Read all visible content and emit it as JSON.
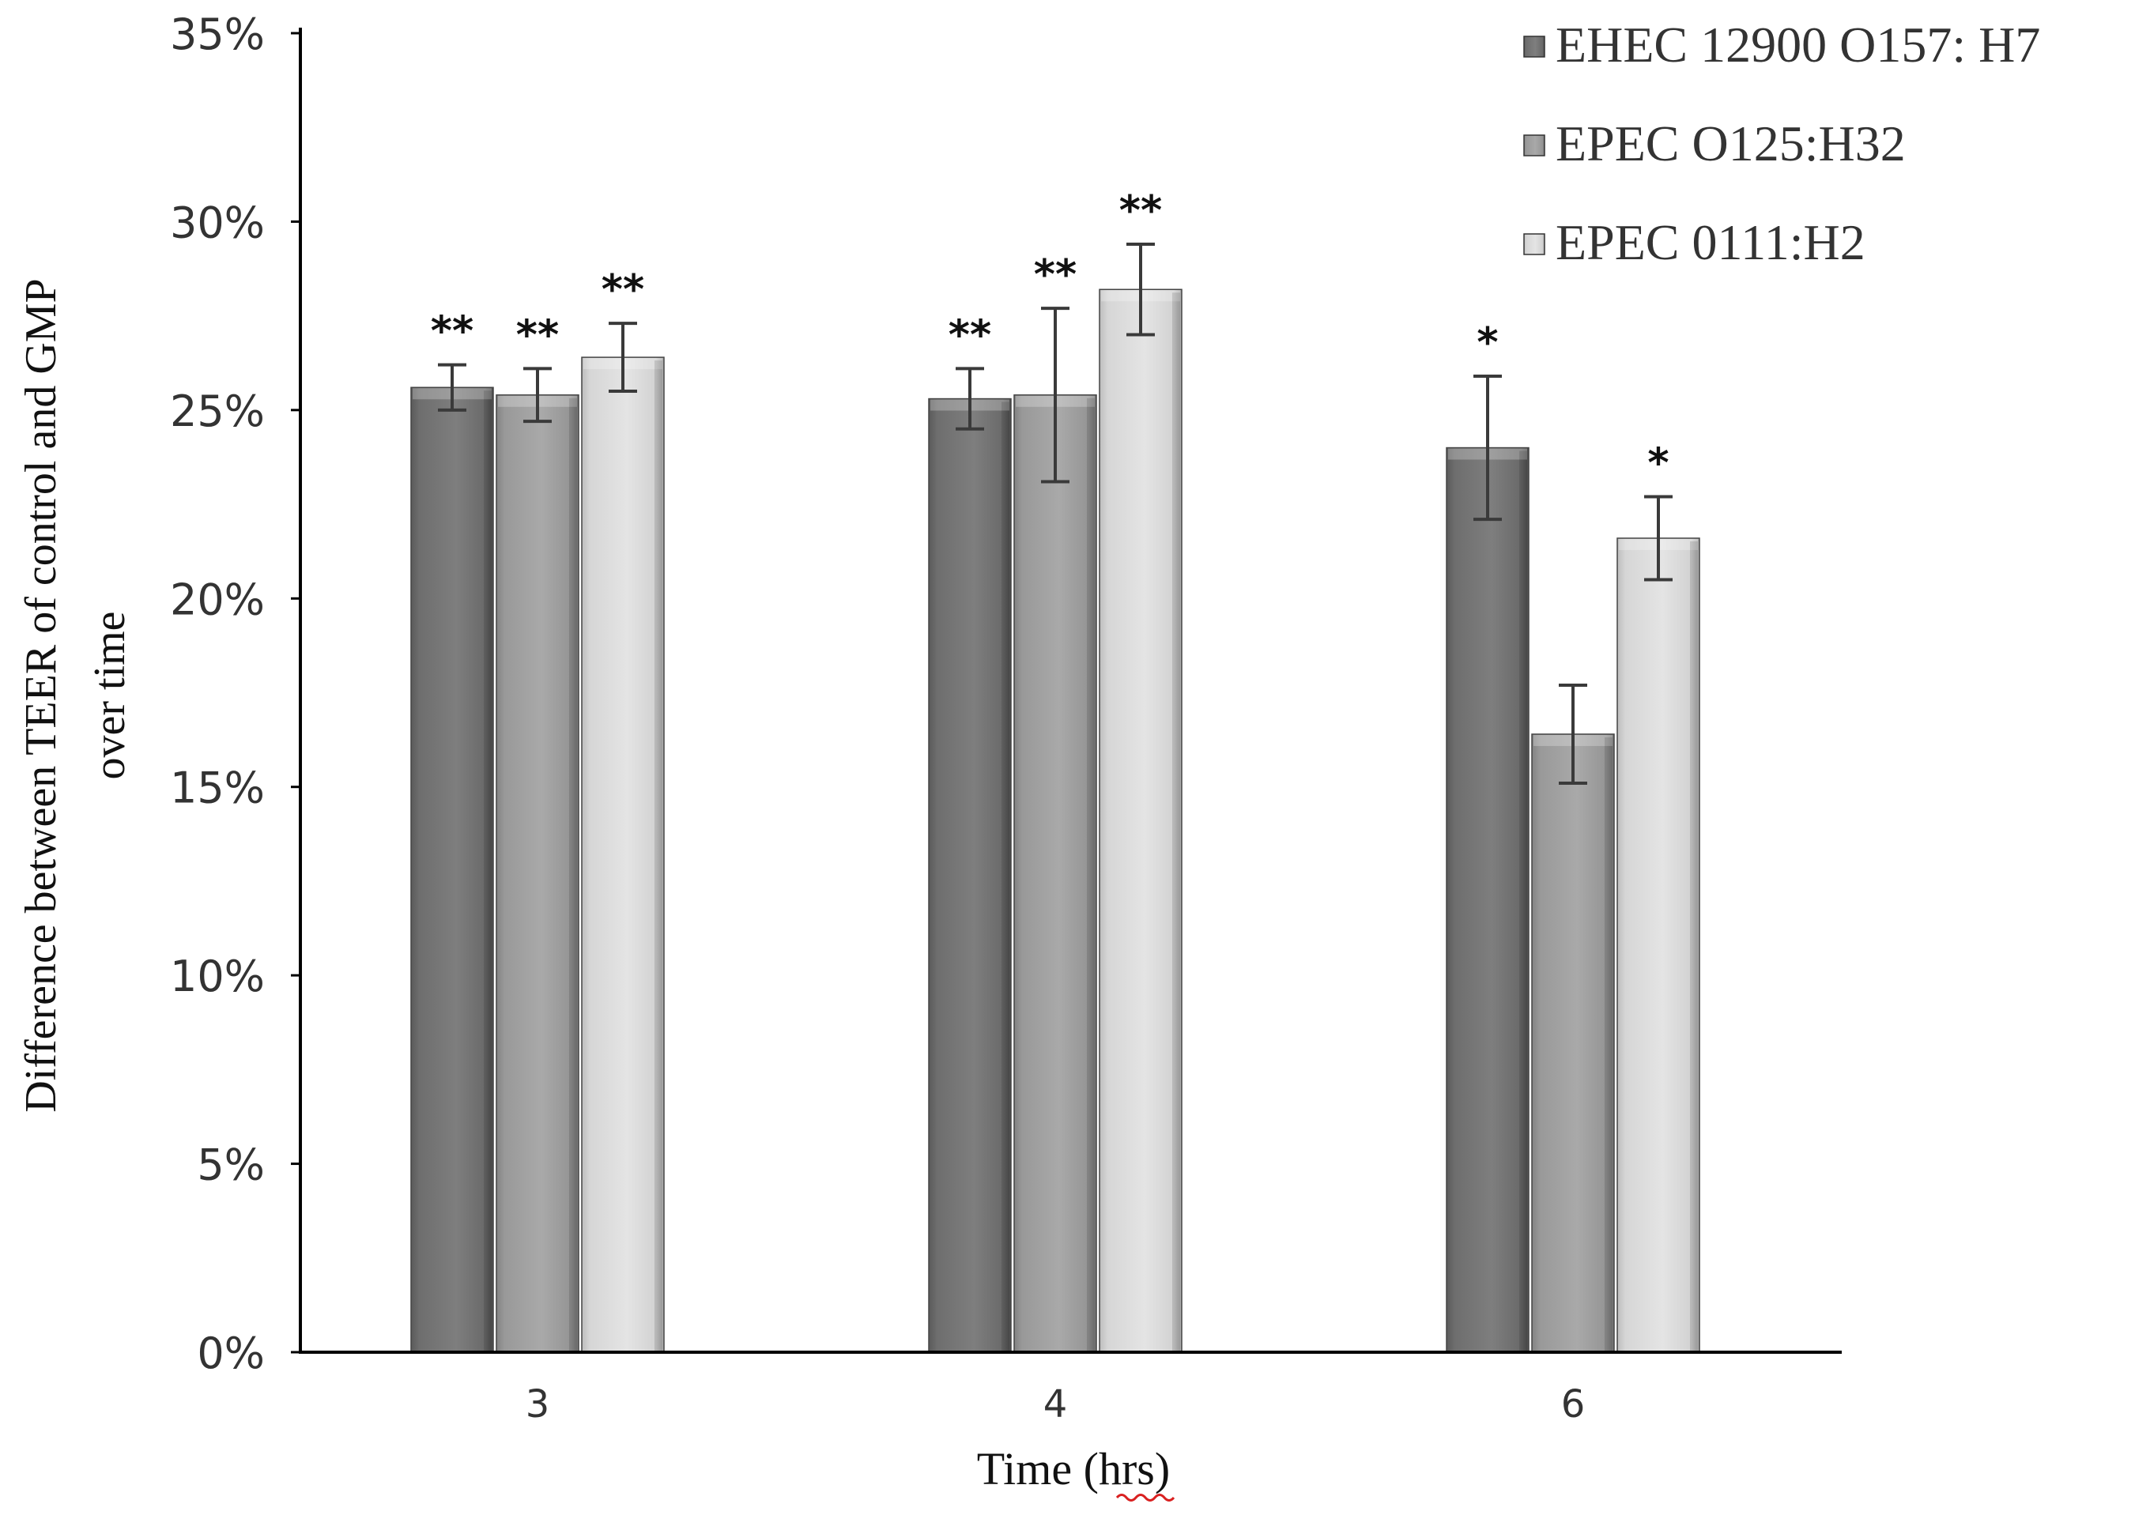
{
  "chart_data": {
    "type": "bar",
    "title": "",
    "xlabel": "Time (hrs)",
    "ylabel_lines": [
      "Difference between TEER of control and GMP",
      "over time"
    ],
    "categories": [
      "3",
      "4",
      "6"
    ],
    "ylim": [
      0,
      35
    ],
    "yticks": [
      "0%",
      "5%",
      "10%",
      "15%",
      "20%",
      "25%",
      "30%",
      "35%"
    ],
    "grid": false,
    "legend_position": "top-right",
    "series": [
      {
        "name": "EHEC 12900 O157: H7",
        "color": "#6e6e6e",
        "values": [
          25.6,
          25.3,
          24.0
        ],
        "errors": [
          0.6,
          0.8,
          1.9
        ],
        "significance": [
          "**",
          "**",
          "*"
        ]
      },
      {
        "name": "EPEC  O125:H32",
        "color": "#9a9a9a",
        "values": [
          25.4,
          25.4,
          16.4
        ],
        "errors": [
          0.7,
          2.3,
          1.3
        ],
        "significance": [
          "**",
          "**",
          ""
        ]
      },
      {
        "name": "EPEC 0111:H2",
        "color": "#d8d8d8",
        "values": [
          26.4,
          28.2,
          21.6
        ],
        "errors": [
          0.9,
          1.2,
          1.1
        ],
        "significance": [
          "**",
          "**",
          "*"
        ]
      }
    ]
  }
}
